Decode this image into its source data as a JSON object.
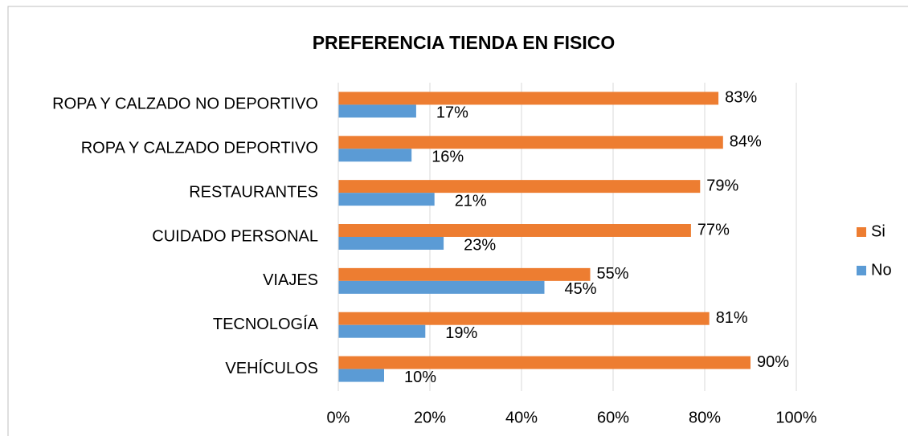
{
  "chart_data": {
    "type": "bar",
    "orientation": "horizontal",
    "title": "PREFERENCIA TIENDA EN FISICO",
    "categories": [
      "ROPA Y CALZADO  NO DEPORTIVO",
      "ROPA Y CALZADO DEPORTIVO",
      "RESTAURANTES",
      "CUIDADO PERSONAL",
      "VIAJES",
      "TECNOLOGÍA",
      "VEHÍCULOS"
    ],
    "series": [
      {
        "name": "Si",
        "color": "#ed7d31",
        "values": [
          83,
          84,
          79,
          77,
          55,
          81,
          90
        ],
        "value_labels": [
          "83%",
          "84%",
          "79%",
          "77%",
          "55%",
          "81%",
          "90%"
        ]
      },
      {
        "name": "No",
        "color": "#5b9bd5",
        "values": [
          17,
          16,
          21,
          23,
          45,
          19,
          10
        ],
        "value_labels": [
          "17%",
          "16%",
          "21%",
          "23%",
          "45%",
          "19%",
          "10%"
        ]
      }
    ],
    "xlim": [
      0,
      100
    ],
    "xticks": [
      {
        "value": 0,
        "label": "0%"
      },
      {
        "value": 20,
        "label": "20%"
      },
      {
        "value": 40,
        "label": "40%"
      },
      {
        "value": 60,
        "label": "60%"
      },
      {
        "value": 80,
        "label": "80%"
      },
      {
        "value": 100,
        "label": "100%"
      }
    ],
    "grid": true,
    "legend": "right"
  }
}
